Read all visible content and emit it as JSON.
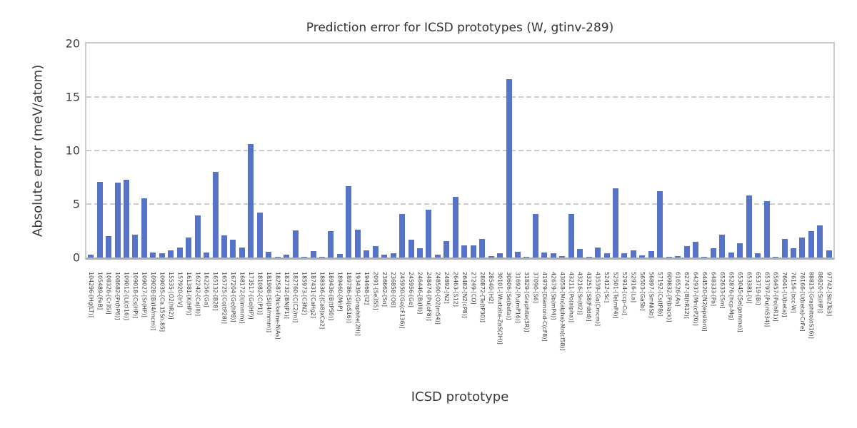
{
  "chart_data": {
    "type": "bar",
    "title": "Prediction error for ICSD prototypes (W, gtinv-289)",
    "xlabel": "ICSD prototype",
    "ylabel": "Absolute error (meV/atom)",
    "ylim": [
      0,
      20
    ],
    "yticks": [
      0,
      5,
      10,
      15,
      20
    ],
    "grid": "horizontal-dashed",
    "legend": "none",
    "bar_color": "#5673c8",
    "categories": [
      "104296-[Hg(LT)]",
      "105489-[FeB]",
      "108326-[Cr3Si]",
      "108682-[Pr(hP6)]",
      "109012-[Li(cI16)]",
      "109018-[Cs(HP)]",
      "109027-[Sr(HP)]",
      "109028-[Bi(I4/mcm)]",
      "109035-[Ca.15Sn.85]",
      "15535-[O2(hR2)]",
      "157920-[IrV]",
      "161381-[K(HP)]",
      "162242-[Ca(III)]",
      "162256-[Ga]",
      "165132-[B28]",
      "165725-[Co(tP28)]",
      "167204-[Ge(hP8)]",
      "168172-[I(Immm)]",
      "173517-[Ge(HP)]",
      "181082-[C(P1)]",
      "181908-[Si(I4/mmm)]",
      "182587-[Nickeline-NiAs]",
      "182732-[BN(P1)]",
      "182760-[C(C2/m)]",
      "185973-[C3N2]",
      "187431-[CaHg2]",
      "188336-[(Ca8)xCa2]",
      "189436-[B(tP50)]",
      "189460-[MnP]",
      "189786-[Si(oS16)]",
      "193439-[Graphite(2H)]",
      "194468-[I2]",
      "2091-[Se3S5]",
      "236662-[Sn]",
      "236858-[O8]",
      "245950-[Ge(cF136)]",
      "245956-[Ge]",
      "246446-[Bi(III)]",
      "248474-[Pu(oF8)]",
      "248500-[O2(mS4)]",
      "24892-[N2]",
      "26463-[S12]",
      "26482-[N2(cP8)]",
      "27249-[CO]",
      "280872-[Ta(tP30)]",
      "28540-[H2]",
      "30101-[Wurtzite-ZnS(2H)]",
      "30606-[Se(beta)]",
      "31692-[Pu(mP16)]",
      "31829-[Graphite(3R)]",
      "37090-[S6]",
      "41979-[Diamond-C(cF8)]",
      "42679-[Sb(mP4)]",
      "43058-[Mn(alpha)-Mn(cI58)]",
      "43211-[Po(alpha)]",
      "43216-[Sn(tI2)]",
      "43251-[S8(Fddd)]",
      "43539-[Ga(Cmcm)]",
      "52412-[Sc]",
      "52501-[Te(mP4)]",
      "52914-[ccp-Cu]",
      "52916-[La]",
      "56503-[GaSb]",
      "56897-[SmNiSb]",
      "57192-[Cs(tP8)]",
      "609832-[P(black)]",
      "616526-[As]",
      "62747-[B(hR12)]",
      "642937-[Mn(cP20)]",
      "644520-[N2(epsilon)]",
      "648333-[Pa]",
      "652633-[Sm]",
      "652876-[hcp-Mg]",
      "653045-[Se(gamma)]",
      "653381-[U]",
      "653719-[Bi]",
      "653797-[Pu(mS34)]",
      "656457-[Po(hR1)]",
      "76041-[U(beta)]",
      "76156-[bcc-W]",
      "76166-[U(beta)-CrFe]",
      "88815-[Graphite(oS16)]",
      "88820-[Si(HP)]",
      "97742-[Sb2Te3]"
    ],
    "values": [
      0.25,
      7.1,
      2.0,
      7.0,
      7.25,
      2.15,
      5.55,
      0.5,
      0.4,
      0.7,
      0.95,
      1.9,
      3.95,
      0.5,
      8.0,
      2.05,
      1.65,
      0.95,
      10.6,
      4.2,
      0.55,
      0.05,
      0.3,
      2.55,
      0.05,
      0.6,
      0.05,
      2.5,
      0.35,
      6.65,
      2.6,
      0.65,
      1.1,
      0.25,
      0.4,
      4.1,
      1.65,
      0.85,
      4.45,
      0.3,
      1.55,
      5.7,
      1.15,
      1.15,
      1.75,
      0.15,
      0.4,
      16.7,
      0.55,
      0.05,
      4.1,
      0.5,
      0.4,
      0.15,
      4.1,
      0.8,
      0.1,
      0.95,
      0.4,
      6.5,
      0.4,
      0.7,
      0.2,
      0.6,
      6.2,
      0.05,
      0.15,
      1.1,
      1.5,
      0.05,
      0.85,
      2.15,
      0.5,
      1.35,
      5.8,
      0.4,
      5.3,
      0.05,
      1.75,
      0.85,
      1.85,
      2.5,
      3.0,
      0.7
    ]
  }
}
